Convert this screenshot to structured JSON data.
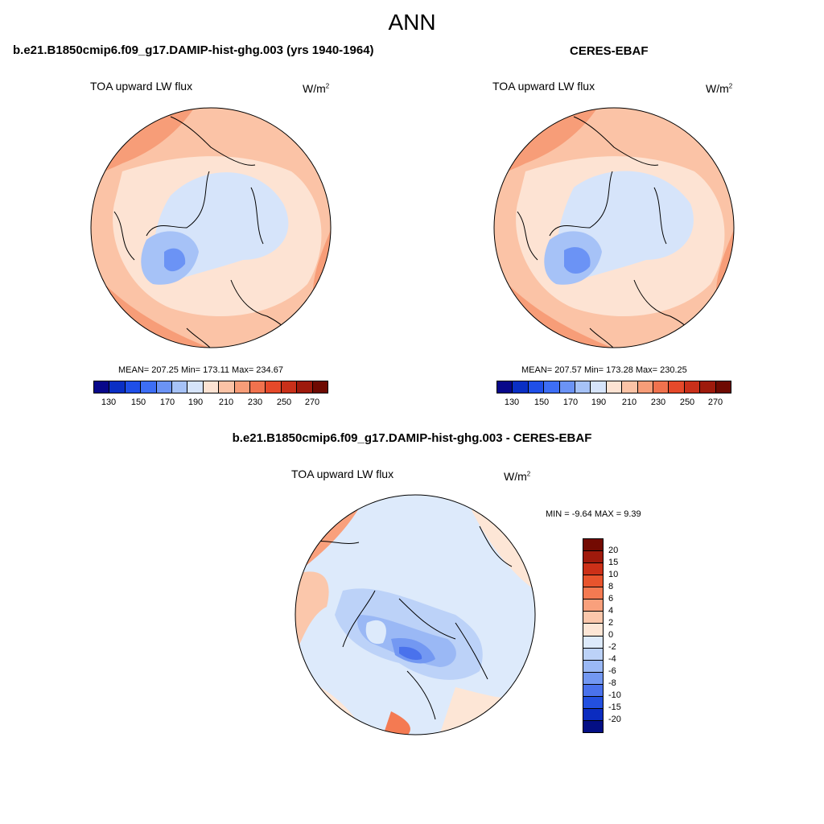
{
  "title": "ANN",
  "panels": {
    "model": {
      "header": "b.e21.B1850cmip6.f09_g17.DAMIP-hist-ghg.003 (yrs 1940-1964)",
      "variable": "TOA upward LW flux",
      "units_base": "W/m",
      "units_exp": "2",
      "stats": "MEAN= 207.25  Min= 173.11  Max= 234.67",
      "colorbar_ticks": [
        "130",
        "150",
        "170",
        "190",
        "210",
        "230",
        "250",
        "270"
      ]
    },
    "obs": {
      "header": "CERES-EBAF",
      "variable": "TOA upward LW flux",
      "units_base": "W/m",
      "units_exp": "2",
      "stats": "MEAN= 207.57  Min= 173.28  Max= 230.25",
      "colorbar_ticks": [
        "130",
        "150",
        "170",
        "190",
        "210",
        "230",
        "250",
        "270"
      ]
    },
    "diff": {
      "header": "b.e21.B1850cmip6.f09_g17.DAMIP-hist-ghg.003 - CERES-EBAF",
      "variable": "TOA upward LW flux",
      "units_base": "W/m",
      "units_exp": "2",
      "stats": "MIN =  -9.64 MAX =   9.39",
      "colorbar_ticks": [
        "20",
        "15",
        "10",
        "8",
        "6",
        "4",
        "2",
        "0",
        "-2",
        "-4",
        "-6",
        "-8",
        "-10",
        "-15",
        "-20"
      ]
    }
  },
  "colors": {
    "abs_scale": [
      "#08088a",
      "#0a2fc4",
      "#1f4fe8",
      "#3d6ef5",
      "#6b93f5",
      "#a6c2f7",
      "#d6e4fa",
      "#fde3d3",
      "#fbc3a6",
      "#f79d78",
      "#f0724e",
      "#e5492a",
      "#c9301a",
      "#9e1a0c",
      "#6e0a02"
    ],
    "diff_scale": [
      "#730a02",
      "#a01a0c",
      "#cc3018",
      "#e8542d",
      "#f47a52",
      "#f9a07c",
      "#fbc7ab",
      "#fde6d6",
      "#ddeafb",
      "#bcd2f8",
      "#9ab8f5",
      "#7398f2",
      "#4a72ec",
      "#2350e0",
      "#0b2cc0",
      "#040f85"
    ]
  }
}
